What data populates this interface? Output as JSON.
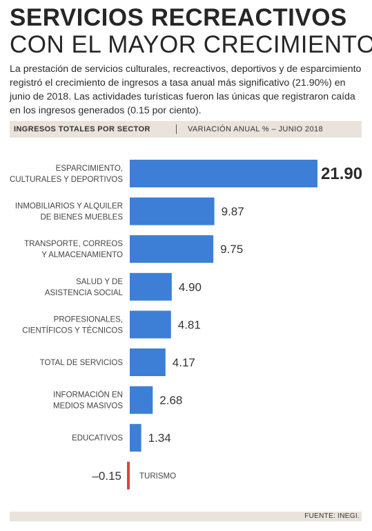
{
  "title_line1": "SERVICIOS RECREACTIVOS",
  "title_line2": "CON EL MAYOR CRECIMIENTO",
  "description": "La prestación de servicios culturales, recreactivos, deportivos y de esparcimiento registró el crecimiento de ingresos a tasa anual más significativo (21.90%) en junio de 2018. Las actividades turísticas fueron las únicas que registraron caída en los ingresos generados (0.15 por ciento).",
  "header": {
    "left": "INGRESOS TOTALES POR SECTOR",
    "right": "VARIACIÓN ANUAL % – JUNIO 2018"
  },
  "source": "FUENTE: INEGI.",
  "colors": {
    "bar": "#3d7fd6",
    "negative": "#e0413d",
    "band": "#e9e3db"
  },
  "chart_data": {
    "type": "bar",
    "orientation": "horizontal",
    "title": "",
    "xlabel": "",
    "ylabel": "",
    "categories": [
      [
        "ESPARCIMIENTO,",
        "CULTURALES Y DEPORTIVOS"
      ],
      [
        "INMOBILIARIOS Y ALQUILER",
        "DE BIENES MUEBLES"
      ],
      [
        "TRANSPORTE, CORREOS",
        "Y ALMACENAMIENTO"
      ],
      [
        "SALUD Y DE",
        "ASISTENCIA SOCIAL"
      ],
      [
        "PROFESIONALES,",
        "CIENTÍFICOS Y TÉCNICOS"
      ],
      [
        "TOTAL DE SERVICIOS"
      ],
      [
        "INFORMACIÓN EN",
        "MEDIOS MASIVOS"
      ],
      [
        "EDUCATIVOS"
      ],
      [
        "TURISMO"
      ]
    ],
    "values": [
      21.9,
      9.87,
      9.75,
      4.9,
      4.81,
      4.17,
      2.68,
      1.34,
      -0.15
    ],
    "value_labels": [
      "21.90",
      "9.87",
      "9.75",
      "4.90",
      "4.81",
      "4.17",
      "2.68",
      "1.34",
      "–0.15"
    ],
    "highlight_index": 0,
    "xlim": [
      0,
      21.9
    ]
  }
}
